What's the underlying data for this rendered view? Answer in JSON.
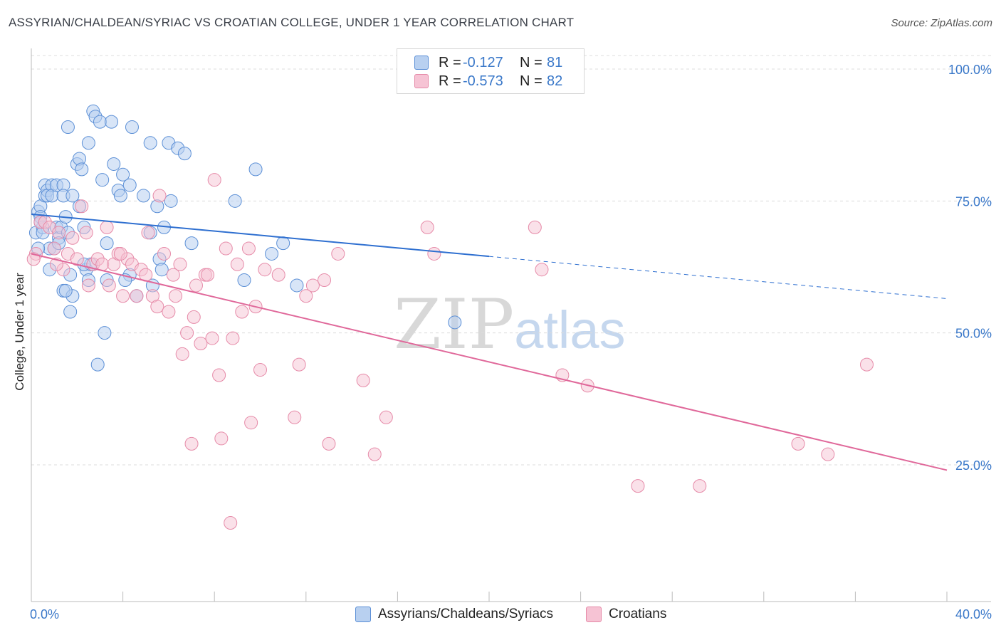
{
  "title": "ASSYRIAN/CHALDEAN/SYRIAC VS CROATIAN COLLEGE, UNDER 1 YEAR CORRELATION CHART",
  "source": "Source: ZipAtlas.com",
  "watermark": {
    "zip": "ZIP",
    "atlas": "atlas"
  },
  "legend": {
    "series1": {
      "r_label": "R =",
      "r_value": "-0.127",
      "n_label": "N =",
      "n_value": "81"
    },
    "series2": {
      "r_label": "R =",
      "r_value": "-0.573",
      "n_label": "N =",
      "n_value": "82"
    }
  },
  "bottom_legend": {
    "series1": "Assyrians/Chaldeans/Syriacs",
    "series2": "Croatians"
  },
  "colors": {
    "blue_fill": "#b8d0f0",
    "blue_stroke": "#5b8fd6",
    "blue_line": "#2e6fd0",
    "pink_fill": "#f6c3d4",
    "pink_stroke": "#e68aa8",
    "pink_line": "#e0689a",
    "tick": "#3a78c9"
  },
  "chart_data": {
    "type": "scatter",
    "title": "ASSYRIAN/CHALDEAN/SYRIAC VS CROATIAN COLLEGE, UNDER 1 YEAR CORRELATION CHART",
    "xlabel": "",
    "ylabel": "College, Under 1 year",
    "xlim": [
      0,
      40
    ],
    "ylim": [
      0,
      105
    ],
    "x_ticks": [
      "0.0%",
      "40.0%"
    ],
    "y_ticks": [
      {
        "value": 25,
        "label": "25.0%"
      },
      {
        "value": 50,
        "label": "50.0%"
      },
      {
        "value": 75,
        "label": "75.0%"
      },
      {
        "value": 100,
        "label": "100.0%"
      }
    ],
    "series": [
      {
        "name": "Assyrians/Chaldeans/Syriacs",
        "trend": {
          "x0": 0,
          "y0": 72.5,
          "x1": 20,
          "y1": 64.5,
          "dash_x1": 40,
          "dash_y1": 56.5
        },
        "points": [
          [
            0.2,
            69
          ],
          [
            0.3,
            73
          ],
          [
            0.4,
            74
          ],
          [
            0.4,
            72
          ],
          [
            0.5,
            70
          ],
          [
            0.5,
            69
          ],
          [
            0.6,
            78
          ],
          [
            0.6,
            76
          ],
          [
            0.7,
            77
          ],
          [
            0.7,
            76
          ],
          [
            0.8,
            66
          ],
          [
            0.8,
            62
          ],
          [
            0.9,
            78
          ],
          [
            0.9,
            76
          ],
          [
            1.0,
            66
          ],
          [
            1.1,
            78
          ],
          [
            1.1,
            70
          ],
          [
            1.2,
            68
          ],
          [
            1.2,
            67
          ],
          [
            1.3,
            70
          ],
          [
            1.4,
            78
          ],
          [
            1.4,
            76
          ],
          [
            1.4,
            58
          ],
          [
            1.5,
            72
          ],
          [
            1.6,
            89
          ],
          [
            1.6,
            69
          ],
          [
            1.7,
            61
          ],
          [
            1.7,
            54
          ],
          [
            1.8,
            57
          ],
          [
            1.8,
            76
          ],
          [
            2.0,
            82
          ],
          [
            2.1,
            83
          ],
          [
            2.1,
            74
          ],
          [
            2.2,
            81
          ],
          [
            2.3,
            70
          ],
          [
            2.4,
            62
          ],
          [
            2.5,
            86
          ],
          [
            2.5,
            60
          ],
          [
            2.6,
            63
          ],
          [
            2.7,
            92
          ],
          [
            2.8,
            91
          ],
          [
            2.9,
            44
          ],
          [
            3.0,
            90
          ],
          [
            3.1,
            79
          ],
          [
            3.2,
            50
          ],
          [
            3.3,
            67
          ],
          [
            3.3,
            60
          ],
          [
            3.5,
            90
          ],
          [
            3.6,
            82
          ],
          [
            3.8,
            77
          ],
          [
            3.9,
            76
          ],
          [
            4.0,
            80
          ],
          [
            4.3,
            78
          ],
          [
            4.3,
            61
          ],
          [
            4.4,
            89
          ],
          [
            4.6,
            57
          ],
          [
            4.9,
            76
          ],
          [
            5.2,
            86
          ],
          [
            5.2,
            69
          ],
          [
            5.3,
            59
          ],
          [
            5.5,
            74
          ],
          [
            5.6,
            64
          ],
          [
            5.7,
            62
          ],
          [
            5.8,
            70
          ],
          [
            6.0,
            86
          ],
          [
            6.1,
            75
          ],
          [
            6.4,
            85
          ],
          [
            6.7,
            84
          ],
          [
            7.0,
            67
          ],
          [
            8.9,
            75
          ],
          [
            9.3,
            60
          ],
          [
            9.8,
            81
          ],
          [
            10.5,
            65
          ],
          [
            11.0,
            67
          ],
          [
            11.6,
            59
          ],
          [
            18.5,
            52
          ],
          [
            0.3,
            66
          ],
          [
            1.5,
            58
          ],
          [
            2.3,
            63
          ],
          [
            4.1,
            60
          ],
          [
            0.4,
            71
          ]
        ]
      },
      {
        "name": "Croatians",
        "trend": {
          "x0": 0,
          "y0": 65,
          "x1": 40,
          "y1": 24
        },
        "points": [
          [
            0.2,
            65
          ],
          [
            0.4,
            71
          ],
          [
            0.6,
            71
          ],
          [
            0.8,
            70
          ],
          [
            1.0,
            66
          ],
          [
            1.2,
            69
          ],
          [
            1.4,
            62
          ],
          [
            1.6,
            65
          ],
          [
            1.8,
            68
          ],
          [
            2.0,
            64
          ],
          [
            2.2,
            74
          ],
          [
            2.4,
            69
          ],
          [
            2.5,
            59
          ],
          [
            2.7,
            63
          ],
          [
            2.9,
            64
          ],
          [
            3.1,
            63
          ],
          [
            3.3,
            70
          ],
          [
            3.4,
            59
          ],
          [
            3.6,
            63
          ],
          [
            3.8,
            65
          ],
          [
            4.0,
            57
          ],
          [
            4.2,
            64
          ],
          [
            4.4,
            63
          ],
          [
            4.6,
            57
          ],
          [
            4.8,
            62
          ],
          [
            5.0,
            61
          ],
          [
            5.1,
            69
          ],
          [
            5.3,
            57
          ],
          [
            5.5,
            55
          ],
          [
            5.6,
            76
          ],
          [
            5.8,
            65
          ],
          [
            6.0,
            54
          ],
          [
            6.2,
            61
          ],
          [
            6.3,
            57
          ],
          [
            6.5,
            63
          ],
          [
            6.6,
            46
          ],
          [
            6.8,
            50
          ],
          [
            7.0,
            29
          ],
          [
            7.1,
            53
          ],
          [
            7.2,
            59
          ],
          [
            7.4,
            48
          ],
          [
            7.6,
            61
          ],
          [
            7.7,
            61
          ],
          [
            7.9,
            49
          ],
          [
            8.0,
            79
          ],
          [
            8.2,
            42
          ],
          [
            8.3,
            30
          ],
          [
            8.5,
            66
          ],
          [
            8.7,
            14
          ],
          [
            8.8,
            49
          ],
          [
            9.0,
            63
          ],
          [
            9.2,
            54
          ],
          [
            9.5,
            66
          ],
          [
            9.6,
            33
          ],
          [
            9.8,
            55
          ],
          [
            10.0,
            43
          ],
          [
            10.2,
            62
          ],
          [
            10.8,
            61
          ],
          [
            11.5,
            34
          ],
          [
            11.7,
            44
          ],
          [
            12.0,
            57
          ],
          [
            12.3,
            59
          ],
          [
            12.8,
            60
          ],
          [
            13.0,
            29
          ],
          [
            13.4,
            65
          ],
          [
            14.5,
            41
          ],
          [
            15.0,
            27
          ],
          [
            15.5,
            34
          ],
          [
            17.3,
            70
          ],
          [
            17.6,
            65
          ],
          [
            22.0,
            70
          ],
          [
            22.3,
            62
          ],
          [
            23.2,
            42
          ],
          [
            24.3,
            40
          ],
          [
            26.5,
            21
          ],
          [
            29.2,
            21
          ],
          [
            33.5,
            29
          ],
          [
            34.8,
            27
          ],
          [
            36.5,
            44
          ],
          [
            0.1,
            64
          ],
          [
            1.1,
            63
          ],
          [
            3.9,
            65
          ]
        ]
      }
    ]
  }
}
